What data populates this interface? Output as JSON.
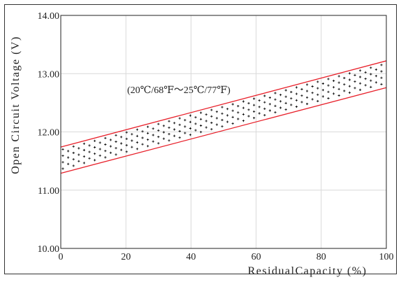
{
  "chart_data": {
    "type": "area",
    "title": "",
    "xlabel": "ResidualCapacity (%)",
    "ylabel": "Open Circuit Voltage (V)",
    "xlim": [
      0,
      100
    ],
    "ylim": [
      10.0,
      14.0
    ],
    "x_ticks": [
      0,
      20,
      40,
      60,
      80,
      100
    ],
    "x_tick_labels": [
      "0",
      "20",
      "40",
      "60",
      "80",
      "100"
    ],
    "y_ticks": [
      10.0,
      11.0,
      12.0,
      13.0,
      14.0
    ],
    "y_tick_labels": [
      "10.00",
      "11.00",
      "12.00",
      "13.00",
      "14.00"
    ],
    "grid": true,
    "annotation": "(20℃/68℉～25℃/77℉)",
    "series": [
      {
        "x": [
          0,
          100
        ],
        "values": [
          11.74,
          13.22
        ]
      },
      {
        "x": [
          0,
          100
        ],
        "values": [
          11.29,
          12.76
        ]
      }
    ],
    "colors": {
      "boundary": "#e8202a",
      "grid": "#d9d9d9",
      "fill_marker": "#111111"
    }
  }
}
